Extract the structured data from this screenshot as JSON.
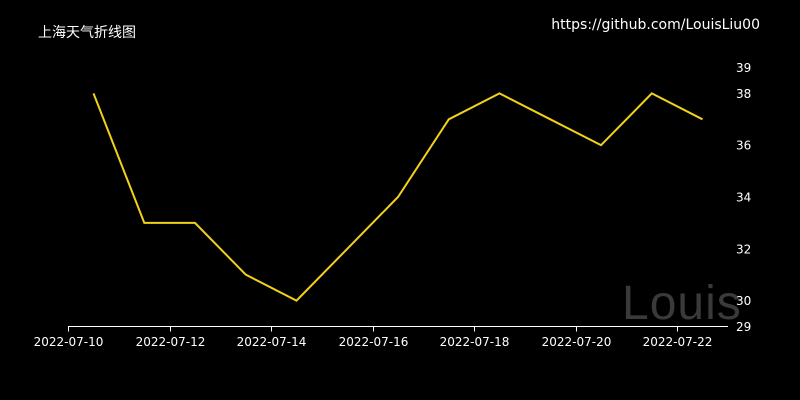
{
  "header": {
    "title": "上海天气折线图",
    "link": "https://github.com/LouisLiu00"
  },
  "watermark": "Louis",
  "colors": {
    "line": "#f2d11a",
    "axis": "#ffffff",
    "background": "#000000",
    "watermark": "#3a3a3a"
  },
  "chart_data": {
    "type": "line",
    "title": "上海天气折线图",
    "x": [
      "2022-07-10",
      "2022-07-11",
      "2022-07-12",
      "2022-07-13",
      "2022-07-14",
      "2022-07-15",
      "2022-07-16",
      "2022-07-17",
      "2022-07-18",
      "2022-07-19",
      "2022-07-20",
      "2022-07-21",
      "2022-07-22"
    ],
    "series": [
      {
        "values": [
          38,
          33,
          33,
          31,
          30,
          32,
          34,
          37,
          38,
          37,
          36,
          38,
          37
        ]
      }
    ],
    "xticks": [
      "2022-07-10",
      "2022-07-12",
      "2022-07-14",
      "2022-07-16",
      "2022-07-18",
      "2022-07-20",
      "2022-07-22"
    ],
    "yticks": [
      29,
      30,
      32,
      34,
      36,
      38,
      39
    ],
    "ylim": [
      29,
      39
    ],
    "y_axis_position": "right",
    "grid": false
  }
}
